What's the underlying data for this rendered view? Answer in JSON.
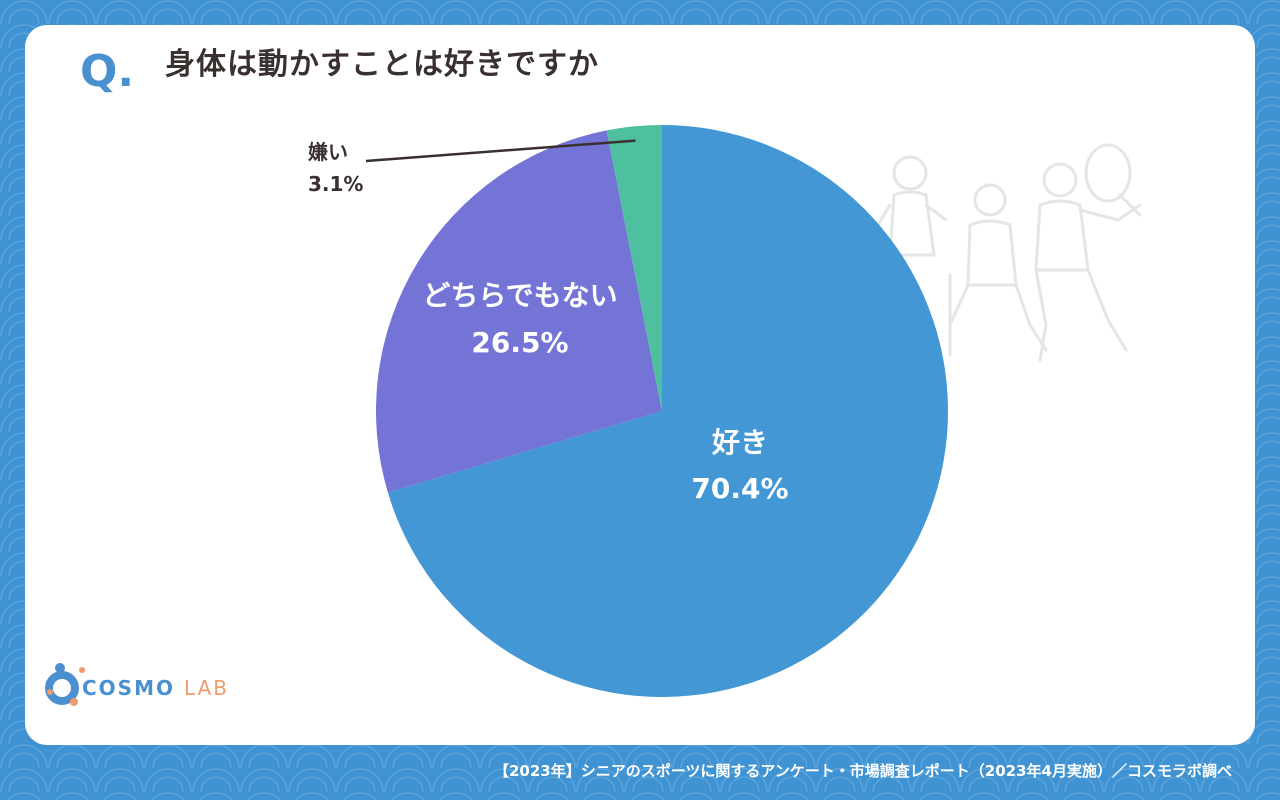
{
  "question": {
    "mark": "Q.",
    "text": "身体は動かすことは好きですか"
  },
  "chart_data": {
    "type": "pie",
    "start_angle_deg": 0,
    "direction": "clockwise",
    "slices": [
      {
        "label": "好き",
        "value": 70.4,
        "value_label": "70.4%",
        "color": "#4397d5",
        "label_style": "inside"
      },
      {
        "label": "どちらでもない",
        "value": 26.5,
        "value_label": "26.5%",
        "color": "#7374d6",
        "label_style": "inside"
      },
      {
        "label": "嫌い",
        "value": 3.1,
        "value_label": "3.1%",
        "color": "#4ec09f",
        "label_style": "outside-leader"
      }
    ]
  },
  "brand": {
    "name_main": "COSMO",
    "name_sub": "LAB",
    "primary_color": "#4a90d0",
    "accent_color": "#ef9a6a"
  },
  "footer": {
    "source": "【2023年】シニアのスポーツに関するアンケート・市場調査レポート（2023年4月実施）／コスモラボ調べ"
  },
  "background_color": "#3f93d3"
}
